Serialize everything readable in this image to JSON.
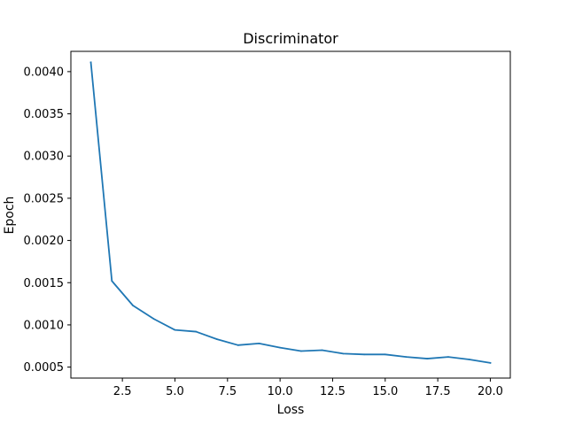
{
  "chart_data": {
    "type": "line",
    "title": "Discriminator",
    "xlabel": "Loss",
    "ylabel": "Epoch",
    "xlim": [
      0.05,
      20.95
    ],
    "ylim": [
      0.00037,
      0.00424
    ],
    "x_ticks": [
      2.5,
      5.0,
      7.5,
      10.0,
      12.5,
      15.0,
      17.5,
      20.0
    ],
    "x_tick_labels": [
      "2.5",
      "5.0",
      "7.5",
      "10.0",
      "12.5",
      "15.0",
      "17.5",
      "20.0"
    ],
    "y_ticks": [
      0.0005,
      0.001,
      0.0015,
      0.002,
      0.0025,
      0.003,
      0.0035,
      0.004
    ],
    "y_tick_labels": [
      "0.0005",
      "0.0010",
      "0.0015",
      "0.0020",
      "0.0025",
      "0.0030",
      "0.0035",
      "0.0040"
    ],
    "grid": false,
    "series": [
      {
        "color": "#1f77b4",
        "x": [
          1,
          2,
          3,
          4,
          5,
          6,
          7,
          8,
          9,
          10,
          11,
          12,
          13,
          14,
          15,
          16,
          17,
          18,
          19,
          20
        ],
        "y": [
          0.00411,
          0.00152,
          0.00123,
          0.00107,
          0.00094,
          0.00092,
          0.00083,
          0.00076,
          0.00078,
          0.00073,
          0.00069,
          0.0007,
          0.00066,
          0.00065,
          0.00065,
          0.00062,
          0.0006,
          0.00062,
          0.00059,
          0.00055
        ]
      }
    ]
  }
}
